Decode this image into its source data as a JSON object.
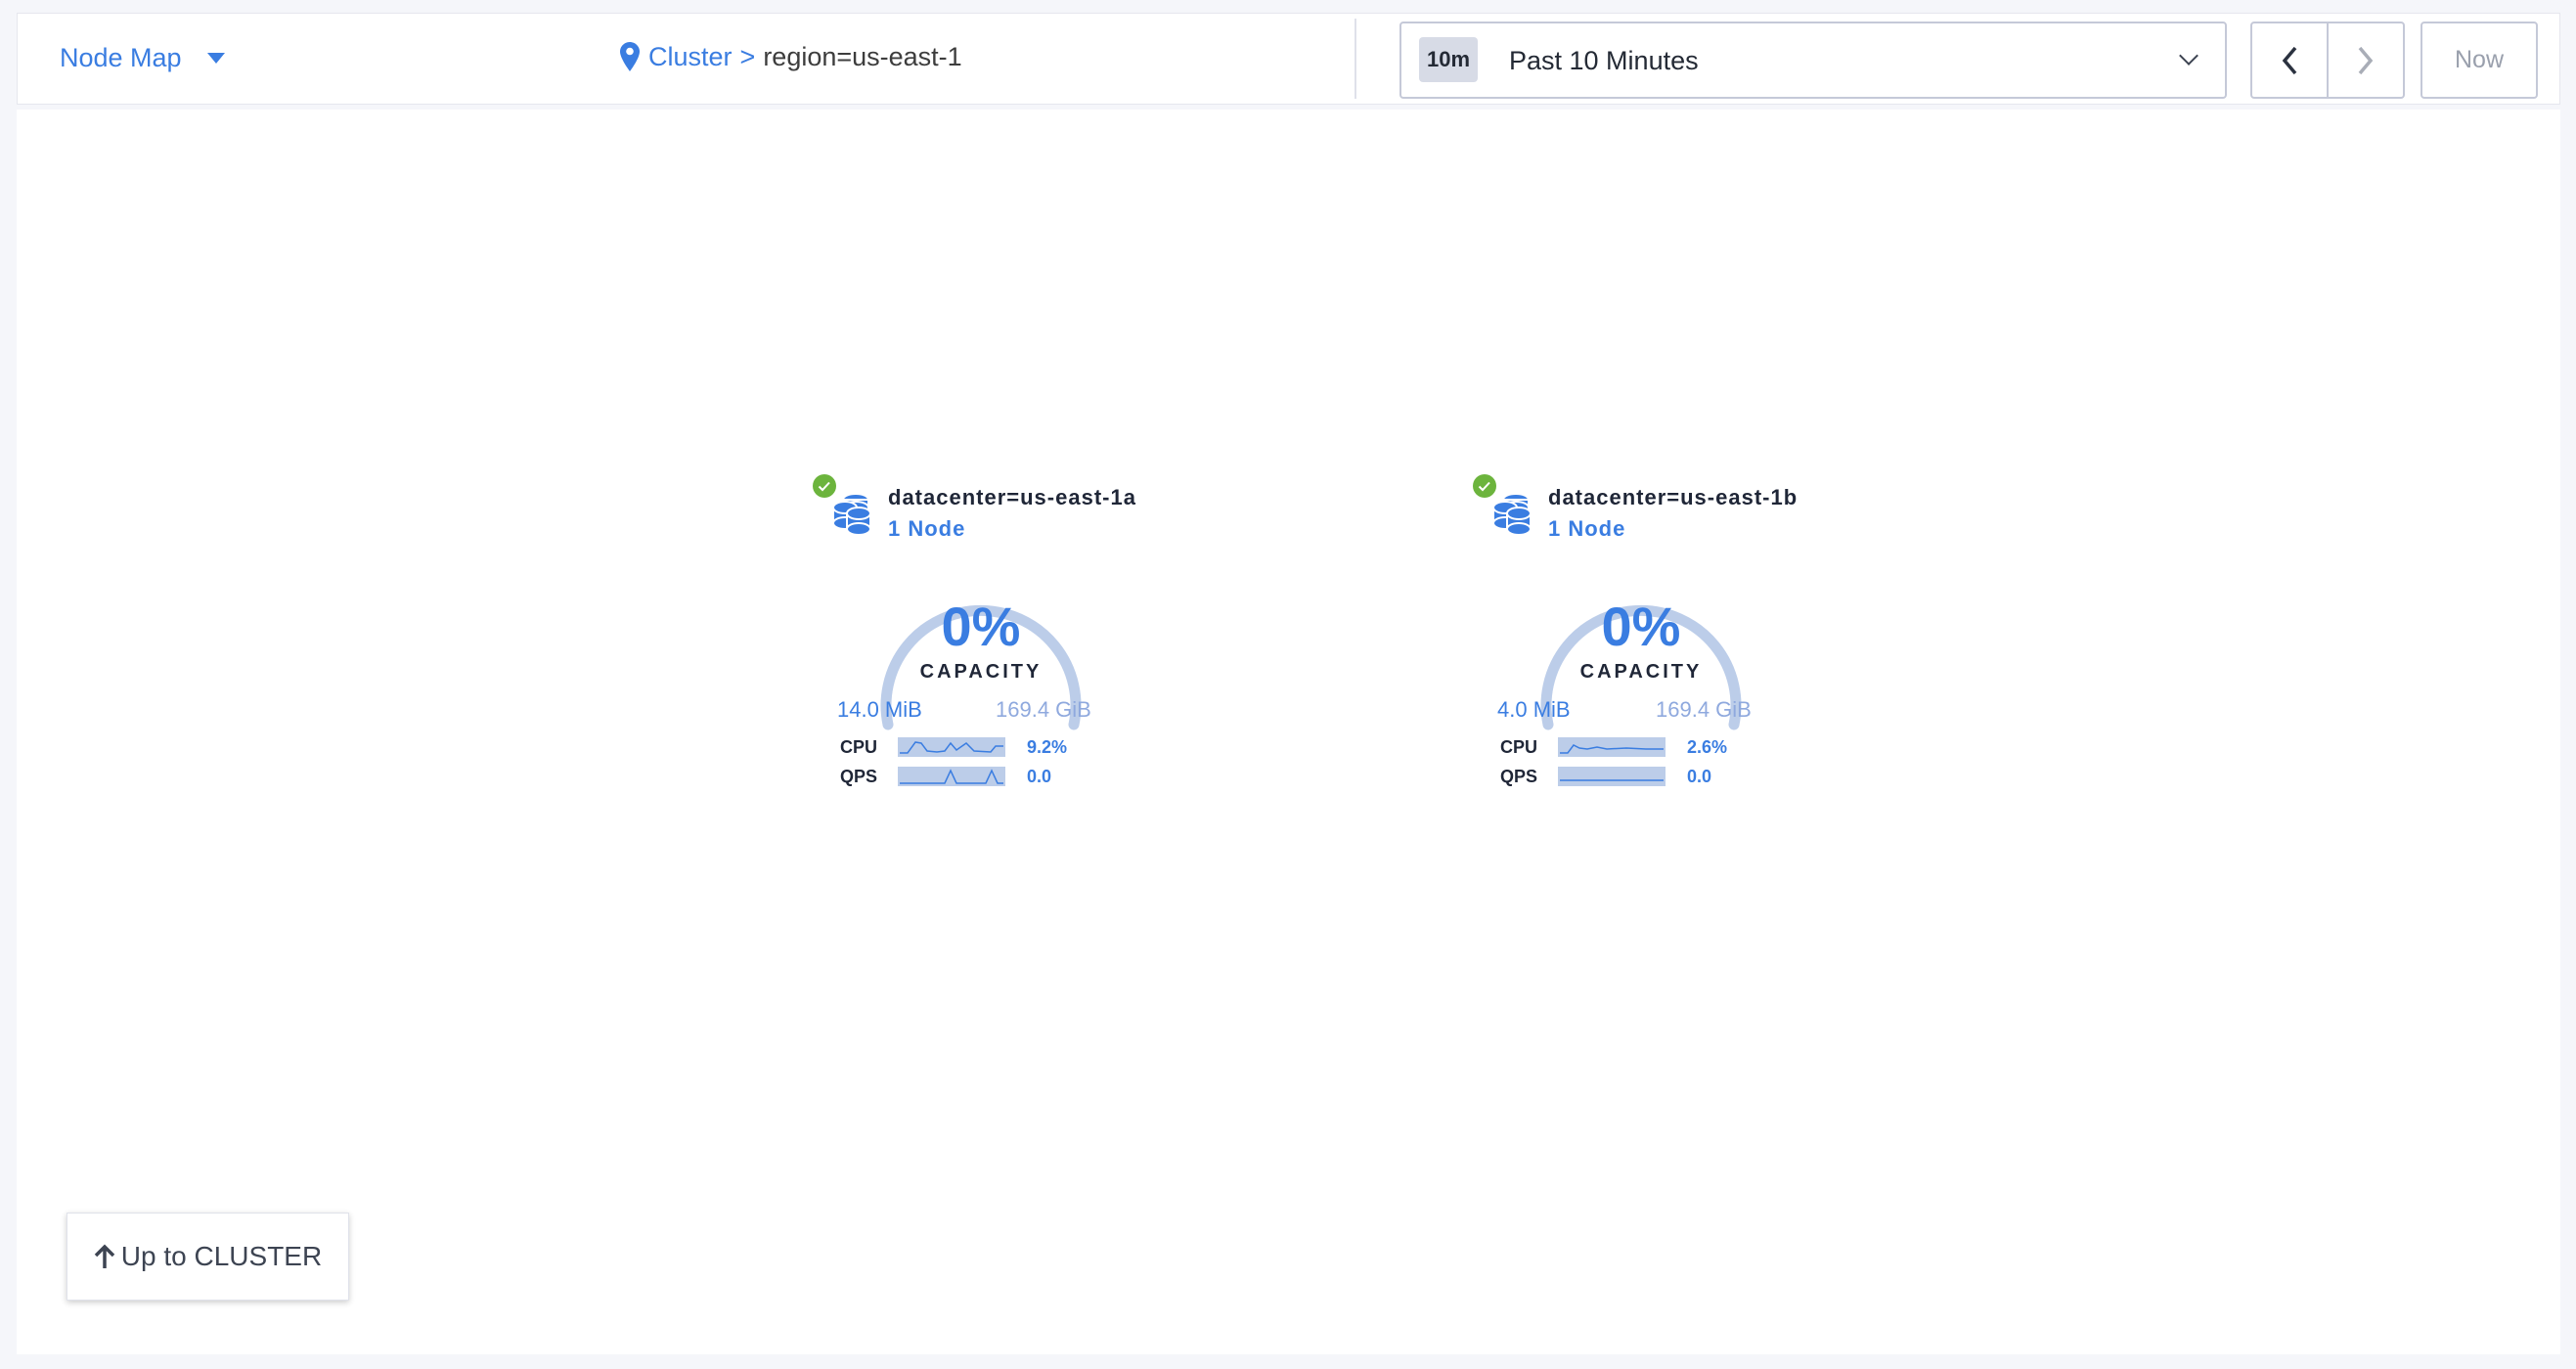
{
  "header": {
    "view_selector": "Node Map",
    "breadcrumb": {
      "root": "Cluster",
      "separator": ">",
      "current": "region=us-east-1"
    },
    "time": {
      "badge": "10m",
      "label": "Past 10 Minutes",
      "now_label": "Now"
    }
  },
  "colors": {
    "accent": "#3a7de1",
    "gauge_track": "#bccde9",
    "healthy": "#6cb43d"
  },
  "localities": [
    {
      "name": "datacenter=us-east-1a",
      "nodes": "1 Node",
      "capacity_pct": "0%",
      "capacity_label": "CAPACITY",
      "used": "14.0 MiB",
      "total": "169.4 GiB",
      "status": "healthy",
      "metrics": [
        {
          "label": "CPU",
          "value": "9.2%"
        },
        {
          "label": "QPS",
          "value": "0.0"
        }
      ]
    },
    {
      "name": "datacenter=us-east-1b",
      "nodes": "1 Node",
      "capacity_pct": "0%",
      "capacity_label": "CAPACITY",
      "used": "4.0 MiB",
      "total": "169.4 GiB",
      "status": "healthy",
      "metrics": [
        {
          "label": "CPU",
          "value": "2.6%"
        },
        {
          "label": "QPS",
          "value": "0.0"
        }
      ]
    }
  ],
  "footer": {
    "up_button": "Up to CLUSTER"
  }
}
